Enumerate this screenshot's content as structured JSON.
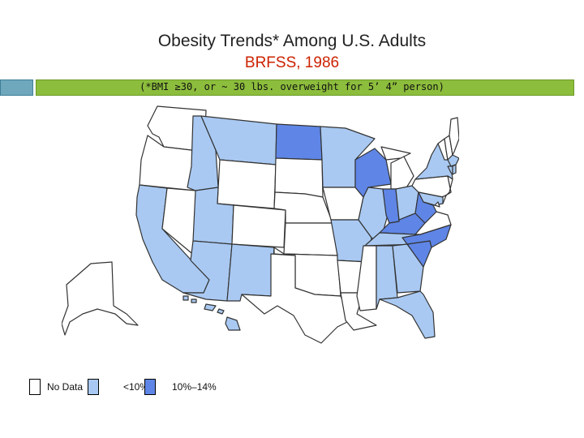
{
  "slide": {
    "title": "Obesity Trends* Among U.S. Adults",
    "subtitle": "BRFSS, 1986",
    "footnote": "(*BMI ≥30, or ~ 30 lbs. overweight for 5’ 4” person)"
  },
  "colors": {
    "no_data": "#ffffff",
    "lt10": "#a9c9f2",
    "10_14": "#5f86e6",
    "state_border": "#333333",
    "title_text": "#222222",
    "subtitle_text": "#cc2200",
    "bar_blue": "#6fa7bd",
    "bar_green": "#8cbd3c"
  },
  "legend": [
    {
      "label": "No Data",
      "category": "no_data"
    },
    {
      "label": "<10%",
      "category": "lt10"
    },
    {
      "label": "10%–14%",
      "category": "10_14"
    }
  ],
  "map": {
    "categories": {
      "WA": "no_data",
      "OR": "no_data",
      "CA": "lt10",
      "NV": "no_data",
      "ID": "lt10",
      "MT": "lt10",
      "WY": "no_data",
      "UT": "lt10",
      "AZ": "lt10",
      "CO": "no_data",
      "NM": "lt10",
      "ND": "10_14",
      "SD": "no_data",
      "NE": "no_data",
      "KS": "no_data",
      "OK": "no_data",
      "TX": "no_data",
      "MN": "lt10",
      "IA": "no_data",
      "MO": "lt10",
      "AR": "no_data",
      "LA": "no_data",
      "WI": "10_14",
      "IL": "lt10",
      "MI": "no_data",
      "IN": "10_14",
      "OH": "lt10",
      "KY": "10_14",
      "TN": "lt10",
      "MS": "no_data",
      "AL": "lt10",
      "GA": "lt10",
      "FL": "lt10",
      "SC": "10_14",
      "NC": "10_14",
      "VA": "no_data",
      "WV": "10_14",
      "PA": "no_data",
      "NY": "lt10",
      "ME": "no_data",
      "NH": "no_data",
      "VT": "no_data",
      "MA": "lt10",
      "CT": "lt10",
      "RI": "lt10",
      "NJ": "no_data",
      "DE": "no_data",
      "MD": "lt10",
      "DC": "no_data",
      "AK": "no_data",
      "HI": "lt10"
    }
  }
}
